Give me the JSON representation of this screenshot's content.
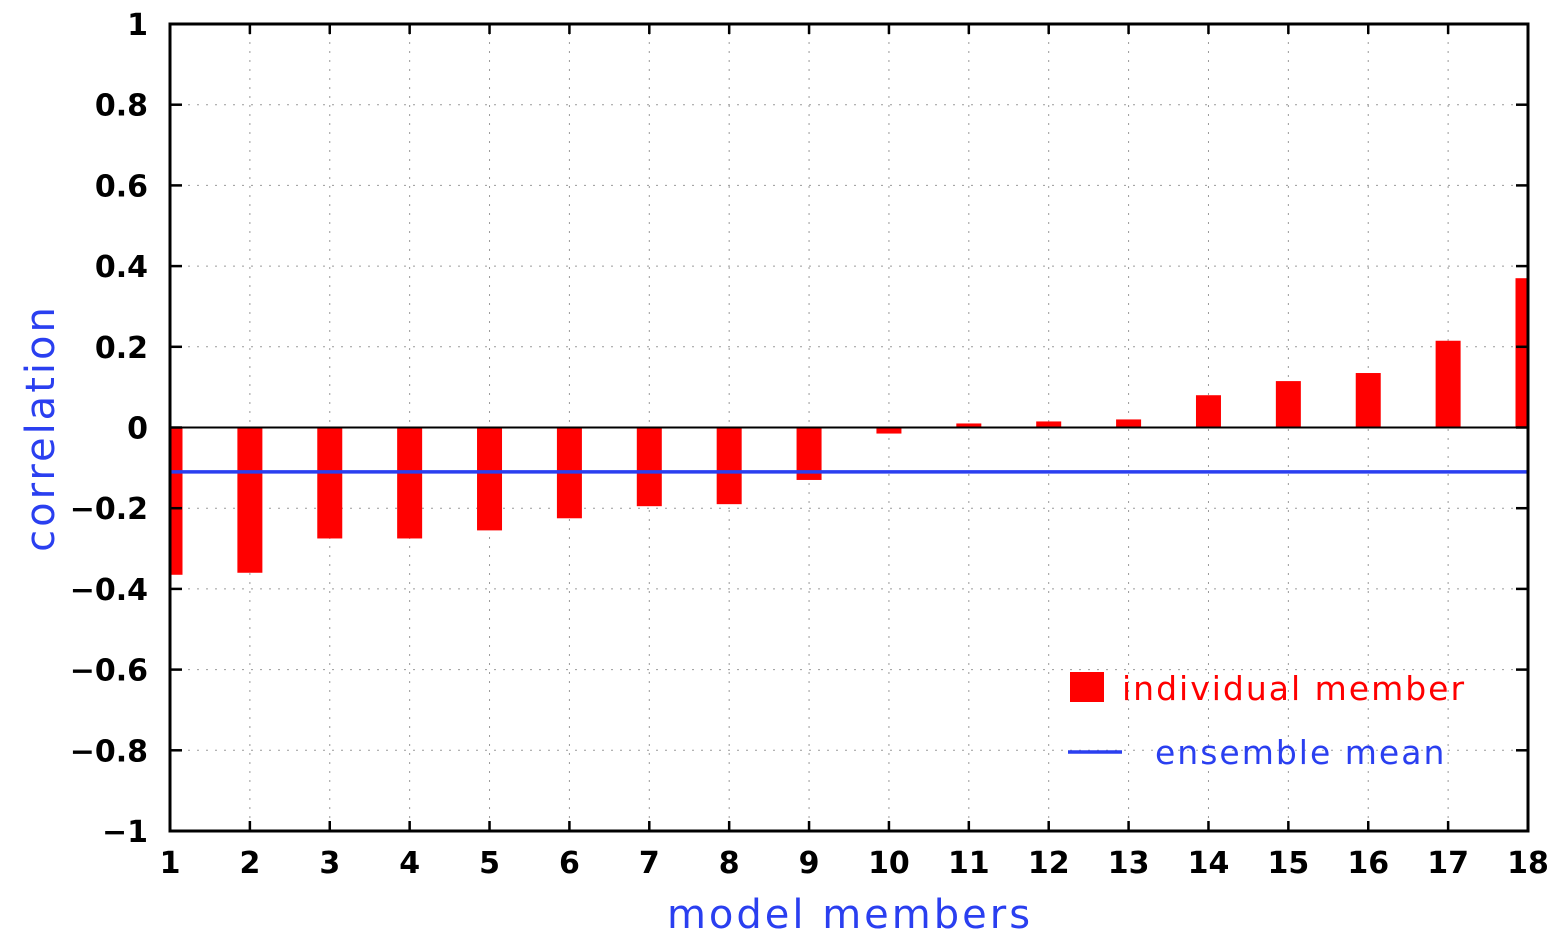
{
  "chart_data": {
    "type": "bar",
    "xlabel": "model members",
    "ylabel": "correlation",
    "x_ticks": [
      "1",
      "2",
      "3",
      "4",
      "5",
      "6",
      "7",
      "8",
      "9",
      "10",
      "11",
      "12",
      "13",
      "14",
      "15",
      "16",
      "17",
      "18"
    ],
    "y_ticks": [
      "−1",
      "−0.8",
      "−0.6",
      "−0.4",
      "−0.2",
      "0",
      "0.2",
      "0.4",
      "0.6",
      "0.8",
      "1"
    ],
    "ylim": [
      -1,
      1
    ],
    "xlim": [
      1,
      18
    ],
    "grid": "dotted",
    "legend_position": "bottom-right",
    "series": [
      {
        "name": "individual member",
        "color": "#ff0000",
        "type": "bar",
        "x": [
          1,
          2,
          3,
          4,
          5,
          6,
          7,
          8,
          9,
          10,
          11,
          12,
          13,
          14,
          15,
          16,
          17,
          18
        ],
        "values": [
          -0.365,
          -0.36,
          -0.275,
          -0.275,
          -0.255,
          -0.225,
          -0.195,
          -0.19,
          -0.13,
          -0.015,
          0.01,
          0.015,
          0.02,
          0.08,
          0.115,
          0.135,
          0.215,
          0.37
        ]
      },
      {
        "name": "ensemble mean",
        "color": "#2a3ff0",
        "type": "hline",
        "value": -0.11
      }
    ]
  }
}
